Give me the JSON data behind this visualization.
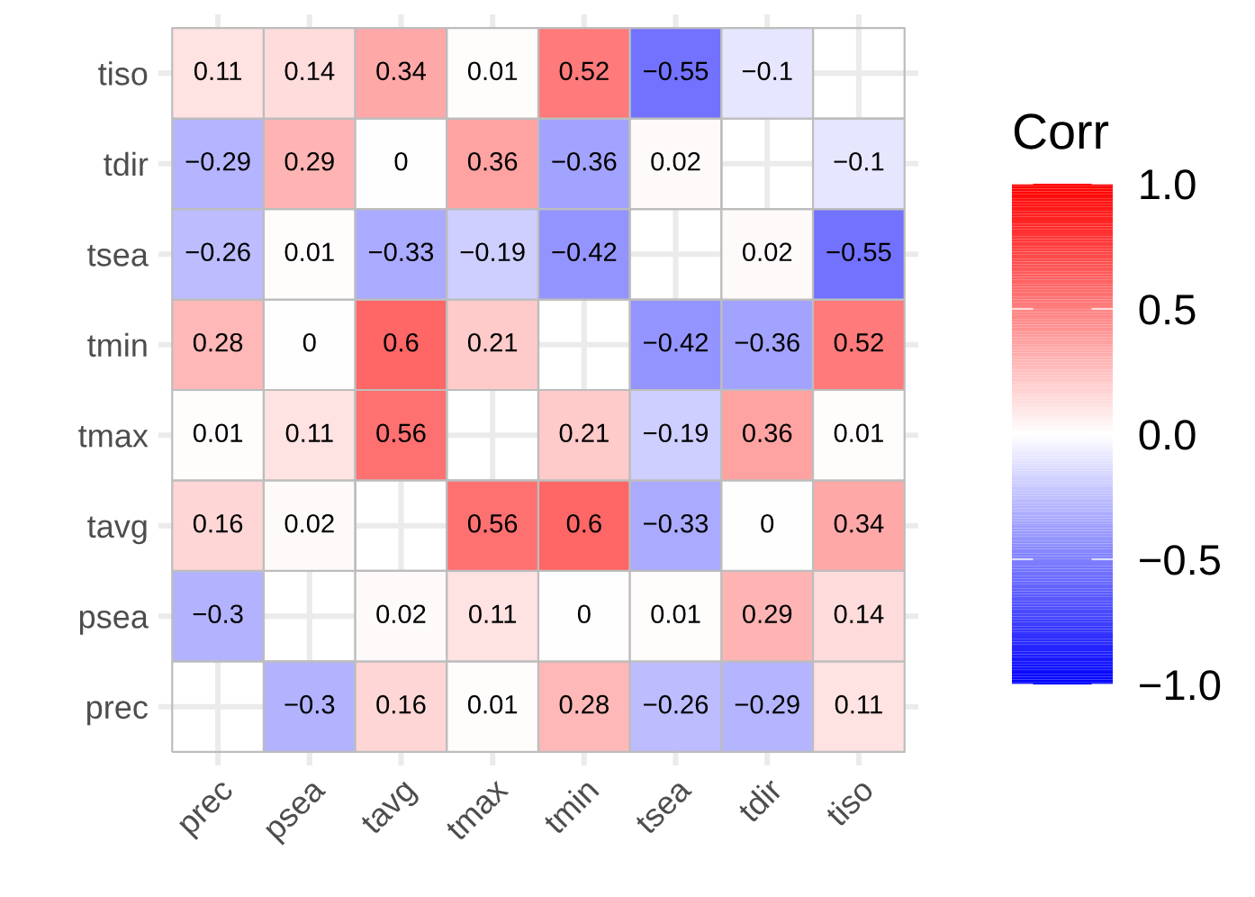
{
  "chart_data": {
    "type": "heatmap",
    "clabel": "Corr",
    "categories": [
      "prec",
      "psea",
      "tavg",
      "tmax",
      "tmin",
      "tsea",
      "tdir",
      "tiso"
    ],
    "y_categories": [
      "tiso",
      "tdir",
      "tsea",
      "tmin",
      "tmax",
      "tavg",
      "psea",
      "prec"
    ],
    "cells": [
      [
        0.11,
        0.14,
        0.34,
        0.01,
        0.52,
        -0.55,
        -0.1,
        null
      ],
      [
        -0.29,
        0.29,
        0,
        0.36,
        -0.36,
        0.02,
        null,
        -0.1
      ],
      [
        -0.26,
        0.01,
        -0.33,
        -0.19,
        -0.42,
        null,
        0.02,
        -0.55
      ],
      [
        0.28,
        0,
        0.6,
        0.21,
        null,
        -0.42,
        -0.36,
        0.52
      ],
      [
        0.01,
        0.11,
        0.56,
        null,
        0.21,
        -0.19,
        0.36,
        0.01
      ],
      [
        0.16,
        0.02,
        null,
        0.56,
        0.6,
        -0.33,
        0,
        0.34
      ],
      [
        -0.3,
        null,
        0.02,
        0.11,
        0,
        0.01,
        0.29,
        0.14
      ],
      [
        null,
        -0.3,
        0.16,
        0.01,
        0.28,
        -0.26,
        -0.29,
        0.11
      ]
    ],
    "cell_labels": [
      [
        "0.11",
        "0.14",
        "0.34",
        "0.01",
        "0.52",
        "−0.55",
        "−0.1",
        null
      ],
      [
        "−0.29",
        "0.29",
        "0",
        "0.36",
        "−0.36",
        "0.02",
        null,
        "−0.1"
      ],
      [
        "−0.26",
        "0.01",
        "−0.33",
        "−0.19",
        "−0.42",
        null,
        "0.02",
        "−0.55"
      ],
      [
        "0.28",
        "0",
        "0.6",
        "0.21",
        null,
        "−0.42",
        "−0.36",
        "0.52"
      ],
      [
        "0.01",
        "0.11",
        "0.56",
        null,
        "0.21",
        "−0.19",
        "0.36",
        "0.01"
      ],
      [
        "0.16",
        "0.02",
        null,
        "0.56",
        "0.6",
        "−0.33",
        "0",
        "0.34"
      ],
      [
        "−0.3",
        null,
        "0.02",
        "0.11",
        "0",
        "0.01",
        "0.29",
        "0.14"
      ],
      [
        null,
        "−0.3",
        "0.16",
        "0.01",
        "0.28",
        "−0.26",
        "−0.29",
        "0.11"
      ]
    ],
    "colors": [
      "#0000ff",
      "#ffffff",
      "#ff0000"
    ],
    "clim": [
      -1,
      1
    ],
    "cticks": [
      {
        "value": -1,
        "label": "−1.0"
      },
      {
        "value": -0.5,
        "label": "−0.5"
      },
      {
        "value": 0,
        "label": "0.0"
      },
      {
        "value": 0.5,
        "label": "0.5"
      },
      {
        "value": 1,
        "label": "1.0"
      }
    ],
    "grid": true
  }
}
